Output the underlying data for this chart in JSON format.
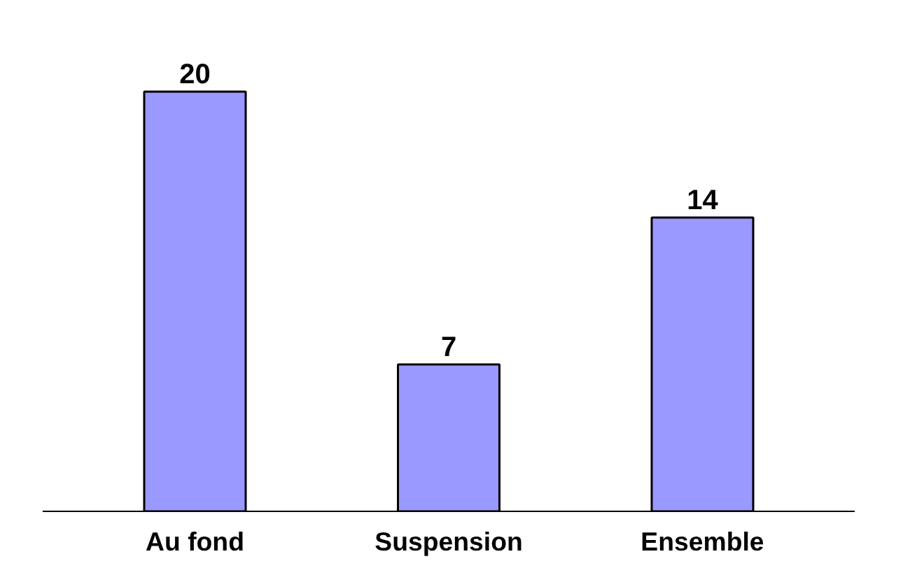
{
  "chart_data": {
    "type": "bar",
    "categories": [
      "Au fond",
      "Suspension",
      "Ensemble"
    ],
    "values": [
      20,
      7,
      14
    ],
    "color": "#9999ff",
    "data_labels": true,
    "tick_labels": "x"
  }
}
